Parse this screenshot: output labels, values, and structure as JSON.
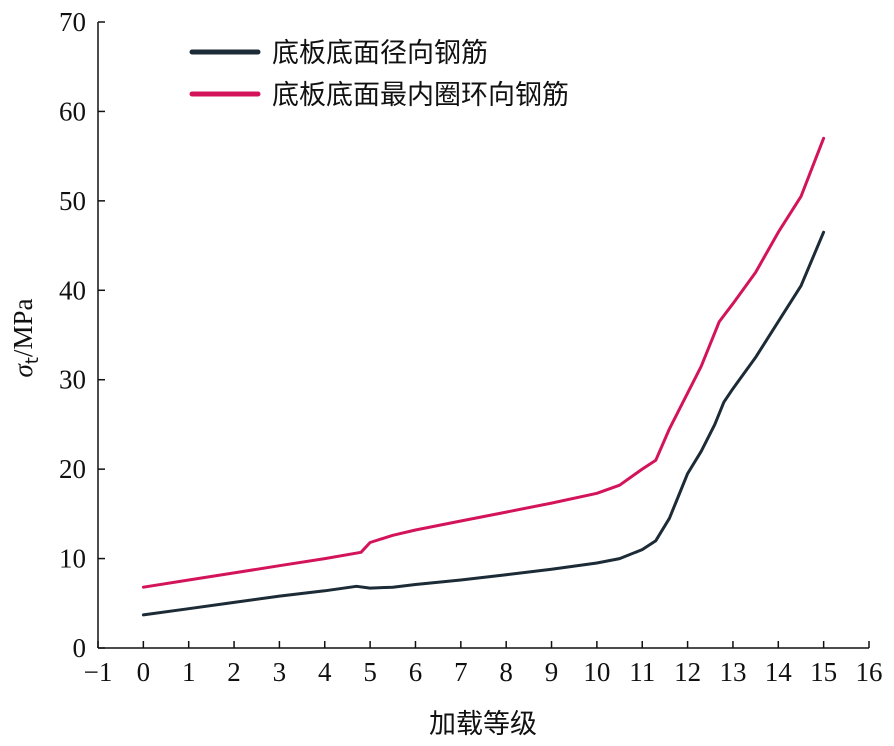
{
  "chart_data": {
    "type": "line",
    "xlabel": "加载等级",
    "ylabel": "σt/MPa",
    "ylabel_parts": {
      "symbol": "σ",
      "subscript": "t",
      "unit": "/MPa"
    },
    "xlim": [
      -1,
      16
    ],
    "ylim": [
      0,
      70
    ],
    "xticks": [
      -1,
      0,
      1,
      2,
      3,
      4,
      5,
      6,
      7,
      8,
      9,
      10,
      11,
      12,
      13,
      14,
      15,
      16
    ],
    "yticks": [
      0,
      10,
      20,
      30,
      40,
      50,
      60,
      70
    ],
    "xtick_labels": [
      "−1",
      "0",
      "1",
      "2",
      "3",
      "4",
      "5",
      "6",
      "7",
      "8",
      "9",
      "10",
      "11",
      "12",
      "13",
      "14",
      "15",
      "16"
    ],
    "ytick_labels": [
      "0",
      "10",
      "20",
      "30",
      "40",
      "50",
      "60",
      "70"
    ],
    "grid": false,
    "legend_position": "top-left",
    "series": [
      {
        "name": "底板底面径向钢筋",
        "color": "#1c2b36",
        "x": [
          0,
          1,
          2,
          3,
          4,
          4.7,
          5,
          5.5,
          6,
          7,
          8,
          9,
          10,
          10.5,
          11,
          11.3,
          11.6,
          11.8,
          12,
          12.3,
          12.6,
          12.8,
          13,
          13.5,
          14,
          14.5,
          15
        ],
        "y": [
          3.7,
          4.4,
          5.1,
          5.8,
          6.4,
          6.9,
          6.7,
          6.8,
          7.1,
          7.6,
          8.2,
          8.8,
          9.5,
          10.0,
          11.0,
          12.0,
          14.5,
          17.0,
          19.5,
          22.0,
          25.0,
          27.5,
          29.0,
          32.5,
          36.5,
          40.5,
          46.5
        ]
      },
      {
        "name": "底板底面最内圈环向钢筋",
        "color": "#d4145a",
        "x": [
          0,
          1,
          2,
          3,
          4,
          4.8,
          5,
          5.5,
          6,
          7,
          8,
          9,
          10,
          10.5,
          11,
          11.3,
          11.6,
          12,
          12.3,
          12.7,
          13,
          13.5,
          14,
          14.5,
          15
        ],
        "y": [
          6.8,
          7.6,
          8.4,
          9.2,
          10.0,
          10.7,
          11.8,
          12.6,
          13.2,
          14.2,
          15.2,
          16.2,
          17.3,
          18.2,
          20.0,
          21.0,
          24.5,
          28.5,
          31.5,
          36.5,
          38.5,
          42.0,
          46.5,
          50.5,
          57.0
        ]
      }
    ]
  }
}
